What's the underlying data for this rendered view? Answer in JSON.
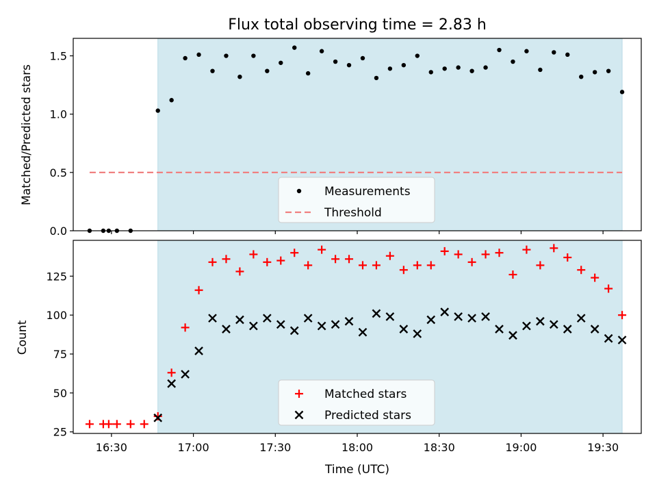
{
  "chart_data": [
    {
      "type": "scatter",
      "title": "Flux total observing time = 2.83 h",
      "ylabel": "Matched/Predicted stars",
      "ylim": [
        0,
        1.65
      ],
      "yticks": [
        0.0,
        0.5,
        1.0,
        1.5
      ],
      "ytick_labels": [
        "0.0",
        "0.5",
        "1.0",
        "1.5"
      ],
      "xlim": [
        "16:16",
        "19:44"
      ],
      "xticks": [
        "16:30",
        "17:00",
        "17:30",
        "18:00",
        "18:30",
        "19:00",
        "19:30"
      ],
      "observing_window": [
        "16:47",
        "19:37"
      ],
      "observing_window_color": "#d3e9f0",
      "legend_position": "lower center",
      "series": [
        {
          "name": "Measurements",
          "marker": "dot",
          "color": "#000000",
          "x": [
            "16:22",
            "16:27",
            "16:29",
            "16:32",
            "16:37",
            "16:47",
            "16:52",
            "16:57",
            "17:02",
            "17:07",
            "17:12",
            "17:17",
            "17:22",
            "17:27",
            "17:32",
            "17:37",
            "17:42",
            "17:47",
            "17:52",
            "17:57",
            "18:02",
            "18:07",
            "18:12",
            "18:17",
            "18:22",
            "18:27",
            "18:32",
            "18:37",
            "18:42",
            "18:47",
            "18:52",
            "18:57",
            "19:02",
            "19:07",
            "19:12",
            "19:17",
            "19:22",
            "19:27",
            "19:32",
            "19:37"
          ],
          "y": [
            0.0,
            0.0,
            0.0,
            0.0,
            0.0,
            1.03,
            1.12,
            1.48,
            1.51,
            1.37,
            1.5,
            1.32,
            1.5,
            1.37,
            1.44,
            1.57,
            1.35,
            1.54,
            1.45,
            1.42,
            1.48,
            1.31,
            1.39,
            1.42,
            1.5,
            1.36,
            1.39,
            1.4,
            1.37,
            1.4,
            1.55,
            1.45,
            1.54,
            1.38,
            1.53,
            1.51,
            1.32,
            1.36,
            1.37,
            1.19
          ]
        },
        {
          "name": "Threshold",
          "marker": "dashed-line",
          "color": "#f08080",
          "x": [
            "16:22",
            "19:37"
          ],
          "y": [
            0.5,
            0.5
          ]
        }
      ]
    },
    {
      "type": "scatter",
      "xlabel": "Time (UTC)",
      "ylabel": "Count",
      "ylim": [
        24,
        148
      ],
      "yticks": [
        25,
        50,
        75,
        100,
        125
      ],
      "ytick_labels": [
        "25",
        "50",
        "75",
        "100",
        "125"
      ],
      "xlim": [
        "16:16",
        "19:44"
      ],
      "xticks": [
        "16:30",
        "17:00",
        "17:30",
        "18:00",
        "18:30",
        "19:00",
        "19:30"
      ],
      "observing_window": [
        "16:47",
        "19:37"
      ],
      "observing_window_color": "#d3e9f0",
      "legend_position": "lower center",
      "series": [
        {
          "name": "Matched stars",
          "marker": "plus",
          "color": "#ff0000",
          "x": [
            "16:22",
            "16:27",
            "16:29",
            "16:32",
            "16:37",
            "16:42",
            "16:47",
            "16:52",
            "16:57",
            "17:02",
            "17:07",
            "17:12",
            "17:17",
            "17:22",
            "17:27",
            "17:32",
            "17:37",
            "17:42",
            "17:47",
            "17:52",
            "17:57",
            "18:02",
            "18:07",
            "18:12",
            "18:17",
            "18:22",
            "18:27",
            "18:32",
            "18:37",
            "18:42",
            "18:47",
            "18:52",
            "18:57",
            "19:02",
            "19:07",
            "19:12",
            "19:17",
            "19:22",
            "19:27",
            "19:32",
            "19:37"
          ],
          "y": [
            30,
            30,
            30,
            30,
            30,
            30,
            35,
            63,
            92,
            116,
            134,
            136,
            128,
            139,
            134,
            135,
            140,
            132,
            142,
            136,
            136,
            132,
            132,
            138,
            129,
            132,
            132,
            141,
            139,
            134,
            139,
            140,
            126,
            142,
            132,
            143,
            137,
            129,
            124,
            117,
            100
          ]
        },
        {
          "name": "Predicted stars",
          "marker": "x",
          "color": "#000000",
          "x": [
            "16:47",
            "16:52",
            "16:57",
            "17:02",
            "17:07",
            "17:12",
            "17:17",
            "17:22",
            "17:27",
            "17:32",
            "17:37",
            "17:42",
            "17:47",
            "17:52",
            "17:57",
            "18:02",
            "18:07",
            "18:12",
            "18:17",
            "18:22",
            "18:27",
            "18:32",
            "18:37",
            "18:42",
            "18:47",
            "18:52",
            "18:57",
            "19:02",
            "19:07",
            "19:12",
            "19:17",
            "19:22",
            "19:27",
            "19:32",
            "19:37"
          ],
          "y": [
            34,
            56,
            62,
            77,
            98,
            91,
            97,
            93,
            98,
            94,
            90,
            98,
            93,
            94,
            96,
            89,
            101,
            99,
            91,
            88,
            97,
            102,
            99,
            98,
            99,
            91,
            87,
            93,
            96,
            94,
            91,
            98,
            91,
            85,
            84
          ]
        }
      ]
    }
  ]
}
